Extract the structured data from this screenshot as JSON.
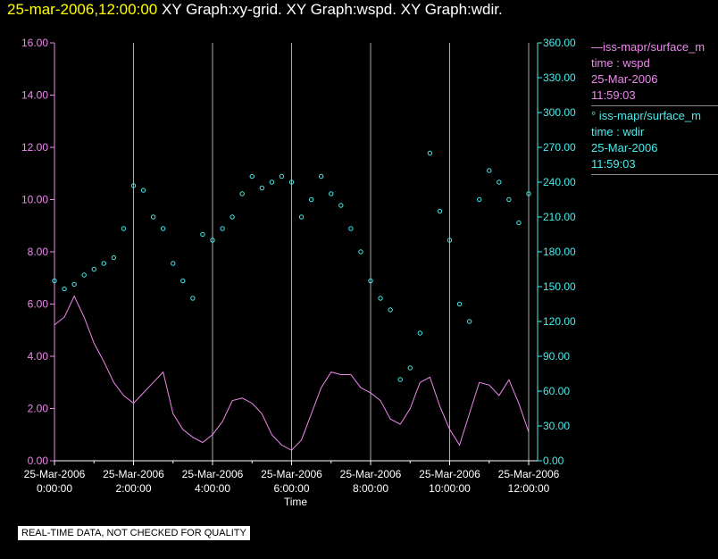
{
  "header": {
    "date": "25-mar-2006,12:00:00",
    "graphs": "XY Graph:xy-grid.  XY Graph:wspd.  XY Graph:wdir."
  },
  "legend": [
    {
      "line": "—iss-mapr/surface_m",
      "field": "time : wspd",
      "date": "25-Mar-2006",
      "time": "11:59:03"
    },
    {
      "line": "° iss-mapr/surface_m",
      "field": "time : wdir",
      "date": "25-Mar-2006",
      "time": "11:59:03"
    }
  ],
  "disclaimer": "REAL-TIME DATA, NOT CHECKED FOR QUALITY",
  "colors": {
    "wspd": "#ee88ee",
    "wdir": "#44eeee",
    "grid": "#aaaaaa"
  },
  "chart_data": {
    "type": "line",
    "xlabel": "Time",
    "x_range_hours": [
      0,
      12
    ],
    "x_ticks": [
      {
        "h": 0,
        "date": "25-Mar-2006",
        "time": "0:00:00"
      },
      {
        "h": 2,
        "date": "25-Mar-2006",
        "time": "2:00:00"
      },
      {
        "h": 4,
        "date": "25-Mar-2006",
        "time": "4:00:00"
      },
      {
        "h": 6,
        "date": "25-Mar-2006",
        "time": "6:00:00"
      },
      {
        "h": 8,
        "date": "25-Mar-2006",
        "time": "8:00:00"
      },
      {
        "h": 10,
        "date": "25-Mar-2006",
        "time": "10:00:00"
      },
      {
        "h": 12,
        "date": "25-Mar-2006",
        "time": "12:00:00"
      }
    ],
    "y_left": {
      "label": "wspd",
      "range": [
        0,
        16
      ],
      "ticks": [
        "0.00",
        "2.00",
        "4.00",
        "6.00",
        "8.00",
        "10.00",
        "12.00",
        "14.00",
        "16.00"
      ]
    },
    "y_right": {
      "label": "wdir",
      "range": [
        0,
        360
      ],
      "ticks": [
        "0.00",
        "30.00",
        "60.00",
        "90.00",
        "120.00",
        "150.00",
        "180.00",
        "210.00",
        "240.00",
        "270.00",
        "300.00",
        "330.00",
        "360.00"
      ]
    },
    "series": [
      {
        "name": "wspd",
        "style": "line",
        "x": [
          0,
          0.25,
          0.5,
          0.75,
          1,
          1.25,
          1.5,
          1.75,
          2,
          2.25,
          2.5,
          2.75,
          3,
          3.25,
          3.5,
          3.75,
          4,
          4.25,
          4.5,
          4.75,
          5,
          5.25,
          5.5,
          5.75,
          6,
          6.25,
          6.5,
          6.75,
          7,
          7.25,
          7.5,
          7.75,
          8,
          8.25,
          8.5,
          8.75,
          9,
          9.25,
          9.5,
          9.75,
          10,
          10.25,
          10.5,
          10.75,
          11,
          11.25,
          11.5,
          11.75,
          12
        ],
        "y": [
          5.2,
          5.5,
          6.3,
          5.5,
          4.5,
          3.8,
          3.0,
          2.5,
          2.2,
          2.6,
          3.0,
          3.4,
          1.8,
          1.2,
          0.9,
          0.7,
          1.0,
          1.5,
          2.3,
          2.4,
          2.2,
          1.8,
          1.0,
          0.6,
          0.4,
          0.8,
          1.8,
          2.8,
          3.4,
          3.3,
          3.3,
          2.8,
          2.6,
          2.3,
          1.6,
          1.4,
          2.0,
          3.0,
          3.2,
          2.1,
          1.2,
          0.6,
          1.8,
          3.0,
          2.9,
          2.5,
          3.1,
          2.2,
          1.1
        ]
      },
      {
        "name": "wdir",
        "style": "scatter",
        "x": [
          0,
          0.25,
          0.5,
          0.75,
          1,
          1.25,
          1.5,
          1.75,
          2,
          2.25,
          2.5,
          2.75,
          3,
          3.25,
          3.5,
          3.75,
          4,
          4.25,
          4.5,
          4.75,
          5,
          5.25,
          5.5,
          5.75,
          6,
          6.25,
          6.5,
          6.75,
          7,
          7.25,
          7.5,
          7.75,
          8,
          8.25,
          8.5,
          8.75,
          9,
          9.25,
          9.5,
          9.75,
          10,
          10.25,
          10.5,
          10.75,
          11,
          11.25,
          11.5,
          11.75,
          12
        ],
        "y": [
          155,
          148,
          152,
          160,
          165,
          170,
          175,
          200,
          237,
          233,
          210,
          200,
          170,
          155,
          140,
          195,
          190,
          200,
          210,
          230,
          245,
          235,
          240,
          245,
          240,
          210,
          225,
          245,
          230,
          220,
          200,
          180,
          155,
          140,
          130,
          70,
          80,
          110,
          265,
          215,
          190,
          135,
          120,
          225,
          250,
          240,
          225,
          205,
          230
        ]
      }
    ]
  }
}
